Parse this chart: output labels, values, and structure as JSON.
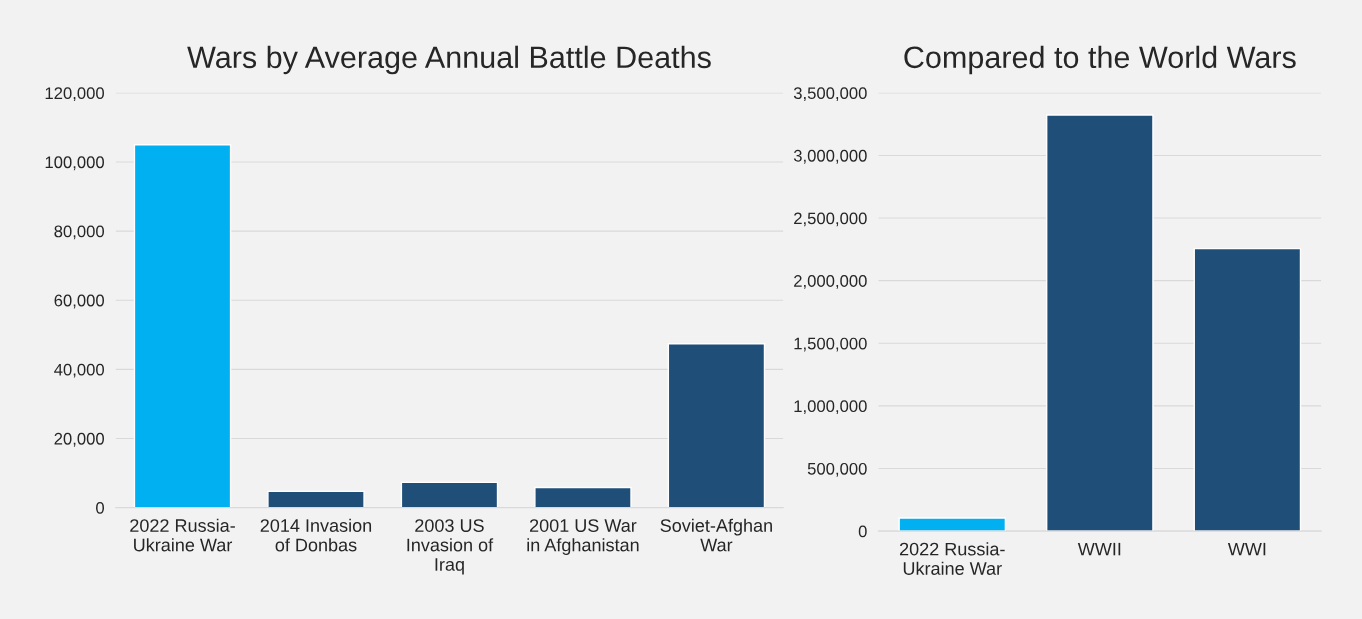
{
  "chart_data": [
    {
      "type": "bar",
      "title": "Wars by Average Annual Battle Deaths",
      "categories": [
        "2022 Russia-\nUkraine War",
        "2014 Invasion\nof Donbas",
        "2003 US\nInvasion of\nIraq",
        "2001 US War\nin Afghanistan",
        "Soviet-Afghan\nWar"
      ],
      "values": [
        105000,
        4700,
        7300,
        5800,
        47400
      ],
      "colors": [
        "#00b0f0",
        "#1f4e79",
        "#1f4e79",
        "#1f4e79",
        "#1f4e79"
      ],
      "ylim": [
        0,
        120000
      ],
      "yticks": [
        {
          "value": 0,
          "label": "0"
        },
        {
          "value": 20000,
          "label": "20,000"
        },
        {
          "value": 40000,
          "label": "40,000"
        },
        {
          "value": 60000,
          "label": "60,000"
        },
        {
          "value": 80000,
          "label": "80,000"
        },
        {
          "value": 100000,
          "label": "100,000"
        },
        {
          "value": 120000,
          "label": "120,000"
        }
      ],
      "grid": "y",
      "legend": false
    },
    {
      "type": "bar",
      "title": "Compared to the World Wars",
      "categories": [
        "2022 Russia-\nUkraine War",
        "WWII",
        "WWI"
      ],
      "values": [
        105000,
        3323000,
        2256000
      ],
      "colors": [
        "#00b0f0",
        "#1f4e79",
        "#1f4e79"
      ],
      "ylim": [
        0,
        3500000
      ],
      "yticks": [
        {
          "value": 0,
          "label": "0"
        },
        {
          "value": 500000,
          "label": "500,000"
        },
        {
          "value": 1000000,
          "label": "1,000,000"
        },
        {
          "value": 1500000,
          "label": "1,500,000"
        },
        {
          "value": 2000000,
          "label": "2,000,000"
        },
        {
          "value": 2500000,
          "label": "2,500,000"
        },
        {
          "value": 3000000,
          "label": "3,000,000"
        },
        {
          "value": 3500000,
          "label": "3,500,000"
        }
      ],
      "grid": "y",
      "legend": false
    }
  ]
}
